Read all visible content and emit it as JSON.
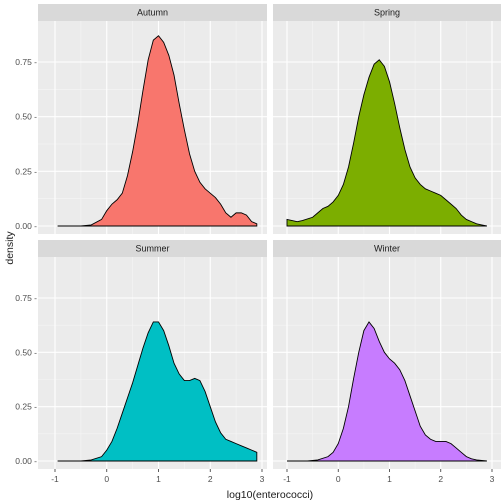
{
  "chart_data": {
    "type": "area",
    "xlabel": "log10(enterococci)",
    "ylabel": "density",
    "xlim": [
      -1,
      2.9
    ],
    "ylim": [
      0,
      0.88
    ],
    "x_ticks": [
      -1,
      0,
      1,
      2,
      3
    ],
    "x_tick_labels": [
      "-1",
      "0",
      "1",
      "2",
      "3"
    ],
    "y_ticks": [
      0,
      0.25,
      0.5,
      0.75
    ],
    "y_tick_labels": [
      "0.00 -",
      "0.25 -",
      "0.50 -",
      "0.75 -"
    ],
    "grid": true,
    "facets": [
      {
        "name": "Autumn",
        "color": "#F8766D",
        "points": [
          [
            -0.95,
            0
          ],
          [
            -0.5,
            0
          ],
          [
            -0.3,
            0.005
          ],
          [
            -0.1,
            0.03
          ],
          [
            0,
            0.07
          ],
          [
            0.1,
            0.1
          ],
          [
            0.2,
            0.12
          ],
          [
            0.3,
            0.15
          ],
          [
            0.4,
            0.23
          ],
          [
            0.5,
            0.34
          ],
          [
            0.6,
            0.47
          ],
          [
            0.7,
            0.62
          ],
          [
            0.8,
            0.76
          ],
          [
            0.9,
            0.85
          ],
          [
            1.0,
            0.87
          ],
          [
            1.1,
            0.84
          ],
          [
            1.2,
            0.78
          ],
          [
            1.3,
            0.69
          ],
          [
            1.4,
            0.56
          ],
          [
            1.5,
            0.44
          ],
          [
            1.6,
            0.33
          ],
          [
            1.7,
            0.25
          ],
          [
            1.8,
            0.2
          ],
          [
            1.9,
            0.17
          ],
          [
            2.0,
            0.15
          ],
          [
            2.1,
            0.13
          ],
          [
            2.2,
            0.1
          ],
          [
            2.3,
            0.06
          ],
          [
            2.4,
            0.04
          ],
          [
            2.5,
            0.06
          ],
          [
            2.6,
            0.06
          ],
          [
            2.7,
            0.05
          ],
          [
            2.8,
            0.02
          ],
          [
            2.9,
            0.01
          ]
        ]
      },
      {
        "name": "Spring",
        "color": "#7CAE00",
        "points": [
          [
            -1.0,
            0.03
          ],
          [
            -0.9,
            0.025
          ],
          [
            -0.8,
            0.02
          ],
          [
            -0.7,
            0.025
          ],
          [
            -0.5,
            0.04
          ],
          [
            -0.4,
            0.06
          ],
          [
            -0.3,
            0.08
          ],
          [
            -0.2,
            0.09
          ],
          [
            -0.1,
            0.11
          ],
          [
            0,
            0.14
          ],
          [
            0.1,
            0.19
          ],
          [
            0.2,
            0.27
          ],
          [
            0.3,
            0.38
          ],
          [
            0.4,
            0.5
          ],
          [
            0.5,
            0.6
          ],
          [
            0.6,
            0.68
          ],
          [
            0.7,
            0.74
          ],
          [
            0.8,
            0.76
          ],
          [
            0.9,
            0.73
          ],
          [
            1.0,
            0.66
          ],
          [
            1.1,
            0.56
          ],
          [
            1.2,
            0.45
          ],
          [
            1.3,
            0.35
          ],
          [
            1.4,
            0.27
          ],
          [
            1.5,
            0.22
          ],
          [
            1.6,
            0.19
          ],
          [
            1.7,
            0.17
          ],
          [
            1.8,
            0.16
          ],
          [
            1.9,
            0.15
          ],
          [
            2.0,
            0.14
          ],
          [
            2.1,
            0.12
          ],
          [
            2.2,
            0.1
          ],
          [
            2.3,
            0.08
          ],
          [
            2.4,
            0.05
          ],
          [
            2.5,
            0.03
          ],
          [
            2.6,
            0.02
          ],
          [
            2.7,
            0.01
          ],
          [
            2.8,
            0.005
          ],
          [
            2.9,
            0
          ]
        ]
      },
      {
        "name": "Summer",
        "color": "#00BFC4",
        "points": [
          [
            -0.95,
            0
          ],
          [
            -0.5,
            0
          ],
          [
            -0.3,
            0.005
          ],
          [
            -0.1,
            0.02
          ],
          [
            0,
            0.05
          ],
          [
            0.1,
            0.09
          ],
          [
            0.2,
            0.15
          ],
          [
            0.3,
            0.22
          ],
          [
            0.4,
            0.29
          ],
          [
            0.5,
            0.36
          ],
          [
            0.6,
            0.44
          ],
          [
            0.7,
            0.52
          ],
          [
            0.8,
            0.59
          ],
          [
            0.9,
            0.64
          ],
          [
            1.0,
            0.64
          ],
          [
            1.1,
            0.6
          ],
          [
            1.2,
            0.53
          ],
          [
            1.3,
            0.45
          ],
          [
            1.4,
            0.4
          ],
          [
            1.5,
            0.37
          ],
          [
            1.6,
            0.37
          ],
          [
            1.7,
            0.38
          ],
          [
            1.8,
            0.37
          ],
          [
            1.9,
            0.32
          ],
          [
            2.0,
            0.25
          ],
          [
            2.1,
            0.18
          ],
          [
            2.2,
            0.13
          ],
          [
            2.3,
            0.1
          ],
          [
            2.4,
            0.09
          ],
          [
            2.5,
            0.08
          ],
          [
            2.6,
            0.07
          ],
          [
            2.7,
            0.06
          ],
          [
            2.8,
            0.05
          ],
          [
            2.9,
            0.04
          ]
        ]
      },
      {
        "name": "Winter",
        "color": "#C77CFF",
        "points": [
          [
            -1.0,
            0
          ],
          [
            -0.6,
            0
          ],
          [
            -0.4,
            0.005
          ],
          [
            -0.2,
            0.02
          ],
          [
            -0.1,
            0.04
          ],
          [
            0,
            0.08
          ],
          [
            0.1,
            0.15
          ],
          [
            0.2,
            0.25
          ],
          [
            0.3,
            0.38
          ],
          [
            0.4,
            0.5
          ],
          [
            0.5,
            0.6
          ],
          [
            0.6,
            0.64
          ],
          [
            0.7,
            0.61
          ],
          [
            0.8,
            0.55
          ],
          [
            0.9,
            0.5
          ],
          [
            1.0,
            0.47
          ],
          [
            1.1,
            0.45
          ],
          [
            1.2,
            0.42
          ],
          [
            1.3,
            0.37
          ],
          [
            1.4,
            0.3
          ],
          [
            1.5,
            0.23
          ],
          [
            1.6,
            0.16
          ],
          [
            1.7,
            0.12
          ],
          [
            1.8,
            0.1
          ],
          [
            1.9,
            0.09
          ],
          [
            2.0,
            0.09
          ],
          [
            2.1,
            0.09
          ],
          [
            2.2,
            0.08
          ],
          [
            2.3,
            0.06
          ],
          [
            2.4,
            0.04
          ],
          [
            2.5,
            0.02
          ],
          [
            2.6,
            0.01
          ],
          [
            2.7,
            0.005
          ],
          [
            2.9,
            0
          ]
        ]
      }
    ]
  }
}
